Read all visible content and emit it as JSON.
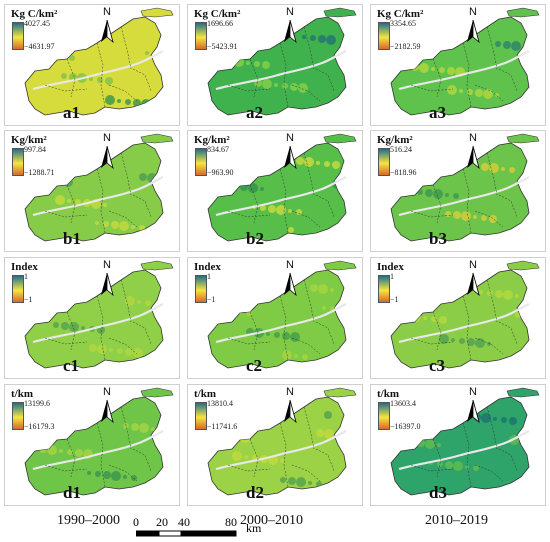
{
  "north_label": "N",
  "periods": [
    "1990–2000",
    "2000–2010",
    "2010–2019"
  ],
  "scalebar": {
    "ticks": [
      "0",
      "20",
      "40",
      "80"
    ],
    "unit": "km"
  },
  "panels": [
    {
      "id": "a1",
      "unit": "Kg C/km²",
      "max": "4027.45",
      "min": "−4631.97",
      "fill": "#d6dc3c",
      "accent": "#7cc04a",
      "dark": "#2f8f4e"
    },
    {
      "id": "a2",
      "unit": "Kg C/km²",
      "max": "1696.66",
      "min": "−5423.91",
      "fill": "#3fb24e",
      "accent": "#8cd14a",
      "dark": "#1f6f78"
    },
    {
      "id": "a3",
      "unit": "Kg C/km²",
      "max": "3354.65",
      "min": "−2182.59",
      "fill": "#5ec24c",
      "accent": "#b9d93e",
      "dark": "#2b7f6d"
    },
    {
      "id": "b1",
      "unit": "Kg/km²",
      "max": "997.84",
      "min": "−1288.71",
      "fill": "#86cc48",
      "accent": "#c9dc3c",
      "dark": "#4a9a52"
    },
    {
      "id": "b2",
      "unit": "Kg/km²",
      "max": "834.67",
      "min": "−963.90",
      "fill": "#57be4a",
      "accent": "#d7dc3c",
      "dark": "#2f8f4e"
    },
    {
      "id": "b3",
      "unit": "Kg/km²",
      "max": "516.24",
      "min": "−818.96",
      "fill": "#6cc44a",
      "accent": "#e0cf3a",
      "dark": "#3a9552"
    },
    {
      "id": "c1",
      "unit": "Index",
      "max": "1",
      "min": "−1",
      "fill": "#8fd048",
      "accent": "#b3d840",
      "dark": "#4f9f4f"
    },
    {
      "id": "c2",
      "unit": "Index",
      "max": "1",
      "min": "−1",
      "fill": "#7fcb46",
      "accent": "#a9d542",
      "dark": "#3f994e"
    },
    {
      "id": "c3",
      "unit": "Index",
      "max": "1",
      "min": "−1",
      "fill": "#8ccd48",
      "accent": "#b8d93f",
      "dark": "#4c9c50"
    },
    {
      "id": "d1",
      "unit": "t/km",
      "max": "13199.6",
      "min": "−16179.3",
      "fill": "#6fc548",
      "accent": "#a9d443",
      "dark": "#35904f"
    },
    {
      "id": "d2",
      "unit": "t/km",
      "max": "13810.4",
      "min": "−11741.6",
      "fill": "#9cd246",
      "accent": "#c6db3e",
      "dark": "#4d9d52"
    },
    {
      "id": "d3",
      "unit": "t/km",
      "max": "13603.4",
      "min": "−16397.0",
      "fill": "#2ea36a",
      "accent": "#67bf4c",
      "dark": "#1c6f73"
    }
  ],
  "colors": {
    "ramp_top": "#1f6f8b",
    "ramp_mid": "#f4e542",
    "ramp_bottom": "#d9682a",
    "boundary": "#333333"
  }
}
